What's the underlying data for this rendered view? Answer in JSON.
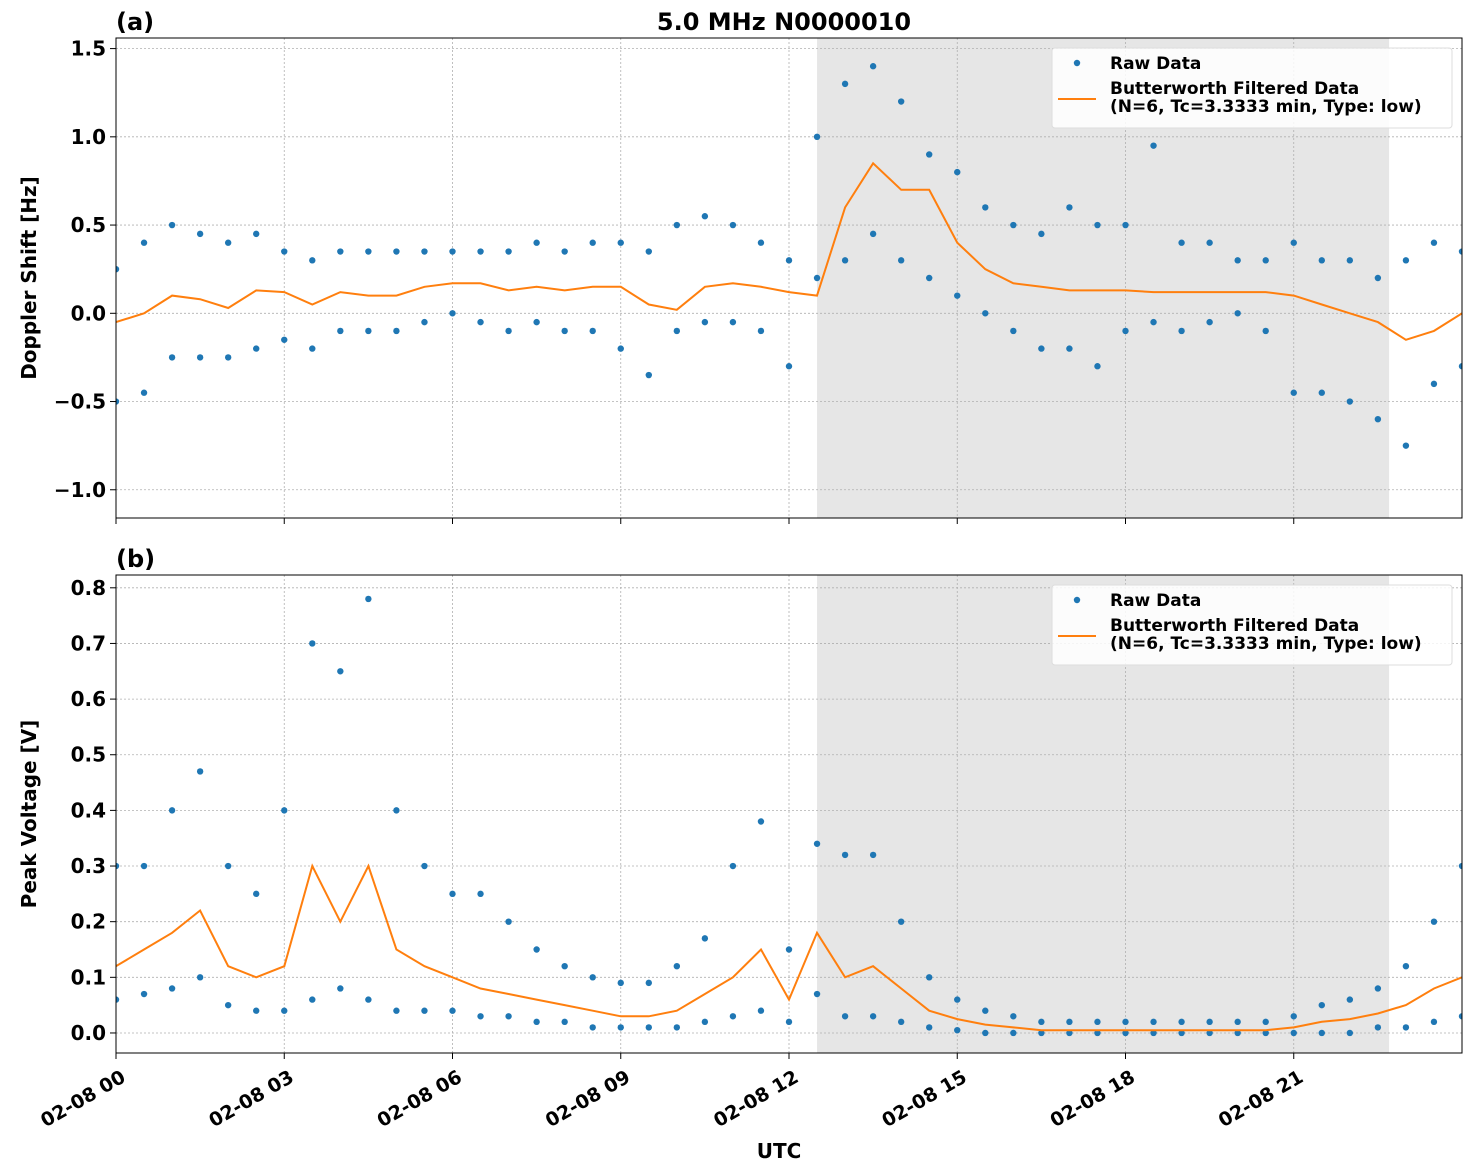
{
  "chart_data": [
    {
      "type": "scatter-line",
      "title": "5.0 MHz N0000010",
      "panel_label": "(a)",
      "y_label": "Doppler Shift [Hz]",
      "xlim": [
        0,
        24
      ],
      "xticks": [
        0,
        3,
        6,
        9,
        12,
        15,
        18,
        21
      ],
      "ylim": [
        -1.16,
        1.56
      ],
      "yticks": [
        {
          "value": -1.0,
          "label": "−1.0"
        },
        {
          "value": -0.5,
          "label": "−0.5"
        },
        {
          "value": 0.0,
          "label": "0.0"
        },
        0.5,
        {
          "value": 1.0,
          "label": "1.0"
        },
        1.5
      ],
      "grid": true,
      "legend": "upper right",
      "shaded_span": [
        12.5,
        22.7
      ],
      "series": [
        {
          "name": "Raw Data",
          "kind": "scatter",
          "color": "#1f77b4",
          "x": [
            0,
            0,
            0.5,
            0.5,
            1,
            1,
            1.5,
            1.5,
            2,
            2,
            2.5,
            2.5,
            3,
            3,
            3.5,
            3.5,
            4,
            4,
            4.5,
            4.5,
            5,
            5,
            5.5,
            5.5,
            6,
            6,
            6.5,
            6.5,
            7,
            7,
            7.5,
            7.5,
            8,
            8,
            8.5,
            8.5,
            9,
            9,
            9.5,
            9.5,
            10,
            10,
            10.5,
            10.5,
            11,
            11,
            11.5,
            11.5,
            12,
            12,
            12.5,
            12.5,
            13,
            13,
            13.5,
            13.5,
            14,
            14,
            14.5,
            14.5,
            15,
            15,
            15.5,
            15.5,
            16,
            16,
            16.5,
            16.5,
            17,
            17,
            17.5,
            17.5,
            18,
            18,
            18.5,
            18.5,
            19,
            19,
            19.5,
            19.5,
            20,
            20,
            20.5,
            20.5,
            21,
            21,
            21.5,
            21.5,
            22,
            22,
            22.5,
            22.5,
            23,
            23,
            23.5,
            23.5,
            24,
            24
          ],
          "values": [
            0.25,
            -0.5,
            0.4,
            -0.45,
            0.5,
            -0.25,
            0.45,
            -0.25,
            0.4,
            -0.25,
            0.45,
            -0.2,
            0.35,
            -0.15,
            0.3,
            -0.2,
            0.35,
            -0.1,
            0.35,
            -0.1,
            0.35,
            -0.1,
            0.35,
            -0.05,
            0.35,
            0.0,
            0.35,
            -0.05,
            0.35,
            -0.1,
            0.4,
            -0.05,
            0.35,
            -0.1,
            0.4,
            -0.1,
            0.4,
            -0.2,
            0.35,
            -0.35,
            0.5,
            -0.1,
            0.55,
            -0.05,
            0.5,
            -0.05,
            0.4,
            -0.1,
            0.3,
            -0.3,
            1.0,
            0.2,
            1.3,
            0.3,
            1.4,
            0.45,
            1.2,
            0.3,
            0.9,
            0.2,
            0.8,
            0.1,
            0.6,
            0.0,
            0.5,
            -0.1,
            0.45,
            -0.2,
            0.6,
            -0.2,
            0.5,
            -0.3,
            0.5,
            -0.1,
            0.95,
            -0.05,
            0.4,
            -0.1,
            0.4,
            -0.05,
            0.3,
            0.0,
            0.3,
            -0.1,
            0.4,
            -0.45,
            0.3,
            -0.45,
            0.3,
            -0.5,
            0.2,
            -0.6,
            0.3,
            -0.75,
            0.4,
            -0.4,
            0.35,
            -0.3
          ]
        },
        {
          "name": "Butterworth Filtered Data\n(N=6, Tc=3.3333 min, Type: low)",
          "kind": "line",
          "color": "#ff7f0e",
          "x": [
            0,
            0.5,
            1,
            1.5,
            2,
            2.5,
            3,
            3.5,
            4,
            4.5,
            5,
            5.5,
            6,
            6.5,
            7,
            7.5,
            8,
            8.5,
            9,
            9.5,
            10,
            10.5,
            11,
            11.5,
            12,
            12.5,
            13,
            13.5,
            14,
            14.5,
            15,
            15.5,
            16,
            16.5,
            17,
            17.5,
            18,
            18.5,
            19,
            19.5,
            20,
            20.5,
            21,
            21.5,
            22,
            22.5,
            23,
            23.5,
            24
          ],
          "values": [
            -0.05,
            0.0,
            0.1,
            0.08,
            0.03,
            0.13,
            0.12,
            0.05,
            0.12,
            0.1,
            0.1,
            0.15,
            0.17,
            0.17,
            0.13,
            0.15,
            0.13,
            0.15,
            0.15,
            0.05,
            0.02,
            0.15,
            0.17,
            0.15,
            0.12,
            0.1,
            0.6,
            0.85,
            0.7,
            0.7,
            0.4,
            0.25,
            0.17,
            0.15,
            0.13,
            0.13,
            0.13,
            0.12,
            0.12,
            0.12,
            0.12,
            0.12,
            0.1,
            0.05,
            0.0,
            -0.05,
            -0.15,
            -0.1,
            0.0
          ]
        }
      ]
    },
    {
      "type": "scatter-line",
      "panel_label": "(b)",
      "y_label": "Peak Voltage [V]",
      "x_label": "UTC",
      "xlim": [
        0,
        24
      ],
      "xticks": [
        {
          "value": 0,
          "label": "02-08 00"
        },
        {
          "value": 3,
          "label": "02-08 03"
        },
        {
          "value": 6,
          "label": "02-08 06"
        },
        {
          "value": 9,
          "label": "02-08 09"
        },
        {
          "value": 12,
          "label": "02-08 12"
        },
        {
          "value": 15,
          "label": "02-08 15"
        },
        {
          "value": 18,
          "label": "02-08 18"
        },
        {
          "value": 21,
          "label": "02-08 21"
        }
      ],
      "ylim": [
        -0.036,
        0.823
      ],
      "yticks": [
        {
          "value": 0.0,
          "label": "0.0"
        },
        0.1,
        0.2,
        0.3,
        0.4,
        0.5,
        0.6,
        0.7,
        0.8
      ],
      "grid": true,
      "legend": "upper right",
      "shaded_span": [
        12.5,
        22.7
      ],
      "series": [
        {
          "name": "Raw Data",
          "kind": "scatter",
          "color": "#1f77b4",
          "x": [
            0,
            0,
            0.5,
            0.5,
            1,
            1,
            1.5,
            1.5,
            2,
            2,
            2.5,
            2.5,
            3,
            3,
            3.5,
            3.5,
            4,
            4,
            4.5,
            4.5,
            5,
            5,
            5.5,
            5.5,
            6,
            6,
            6.5,
            6.5,
            7,
            7,
            7.5,
            7.5,
            8,
            8,
            8.5,
            8.5,
            9,
            9,
            9.5,
            9.5,
            10,
            10,
            10.5,
            10.5,
            11,
            11,
            11.5,
            11.5,
            12,
            12,
            12.5,
            12.5,
            13,
            13,
            13.5,
            13.5,
            14,
            14,
            14.5,
            14.5,
            15,
            15,
            15.5,
            15.5,
            16,
            16,
            16.5,
            16.5,
            17,
            17,
            17.5,
            17.5,
            18,
            18,
            18.5,
            18.5,
            19,
            19,
            19.5,
            19.5,
            20,
            20,
            20.5,
            20.5,
            21,
            21,
            21.5,
            21.5,
            22,
            22,
            22.5,
            22.5,
            23,
            23,
            23.5,
            23.5,
            24,
            24
          ],
          "values": [
            0.3,
            0.06,
            0.3,
            0.07,
            0.4,
            0.08,
            0.47,
            0.1,
            0.3,
            0.05,
            0.25,
            0.04,
            0.4,
            0.04,
            0.7,
            0.06,
            0.65,
            0.08,
            0.78,
            0.06,
            0.4,
            0.04,
            0.3,
            0.04,
            0.25,
            0.04,
            0.25,
            0.03,
            0.2,
            0.03,
            0.15,
            0.02,
            0.12,
            0.02,
            0.1,
            0.01,
            0.09,
            0.01,
            0.09,
            0.01,
            0.12,
            0.01,
            0.17,
            0.02,
            0.3,
            0.03,
            0.38,
            0.04,
            0.15,
            0.02,
            0.34,
            0.07,
            0.32,
            0.03,
            0.32,
            0.03,
            0.2,
            0.02,
            0.1,
            0.01,
            0.06,
            0.005,
            0.04,
            0.0,
            0.03,
            0.0,
            0.02,
            0.0,
            0.02,
            0.0,
            0.02,
            0.0,
            0.02,
            0.0,
            0.02,
            0.0,
            0.02,
            0.0,
            0.02,
            0.0,
            0.02,
            0.0,
            0.02,
            0.0,
            0.03,
            0.0,
            0.05,
            0.0,
            0.06,
            0.0,
            0.08,
            0.01,
            0.12,
            0.01,
            0.2,
            0.02,
            0.3,
            0.03
          ]
        },
        {
          "name": "Butterworth Filtered Data\n(N=6, Tc=3.3333 min, Type: low)",
          "kind": "line",
          "color": "#ff7f0e",
          "x": [
            0,
            0.5,
            1,
            1.5,
            2,
            2.5,
            3,
            3.5,
            4,
            4.5,
            5,
            5.5,
            6,
            6.5,
            7,
            7.5,
            8,
            8.5,
            9,
            9.5,
            10,
            10.5,
            11,
            11.5,
            12,
            12.5,
            13,
            13.5,
            14,
            14.5,
            15,
            15.5,
            16,
            16.5,
            17,
            17.5,
            18,
            18.5,
            19,
            19.5,
            20,
            20.5,
            21,
            21.5,
            22,
            22.5,
            23,
            23.5,
            24
          ],
          "values": [
            0.12,
            0.15,
            0.18,
            0.22,
            0.12,
            0.1,
            0.12,
            0.3,
            0.2,
            0.3,
            0.15,
            0.12,
            0.1,
            0.08,
            0.07,
            0.06,
            0.05,
            0.04,
            0.03,
            0.03,
            0.04,
            0.07,
            0.1,
            0.15,
            0.06,
            0.18,
            0.1,
            0.12,
            0.08,
            0.04,
            0.025,
            0.015,
            0.01,
            0.005,
            0.005,
            0.005,
            0.005,
            0.005,
            0.005,
            0.005,
            0.005,
            0.005,
            0.01,
            0.02,
            0.025,
            0.035,
            0.05,
            0.08,
            0.1
          ]
        }
      ]
    }
  ]
}
